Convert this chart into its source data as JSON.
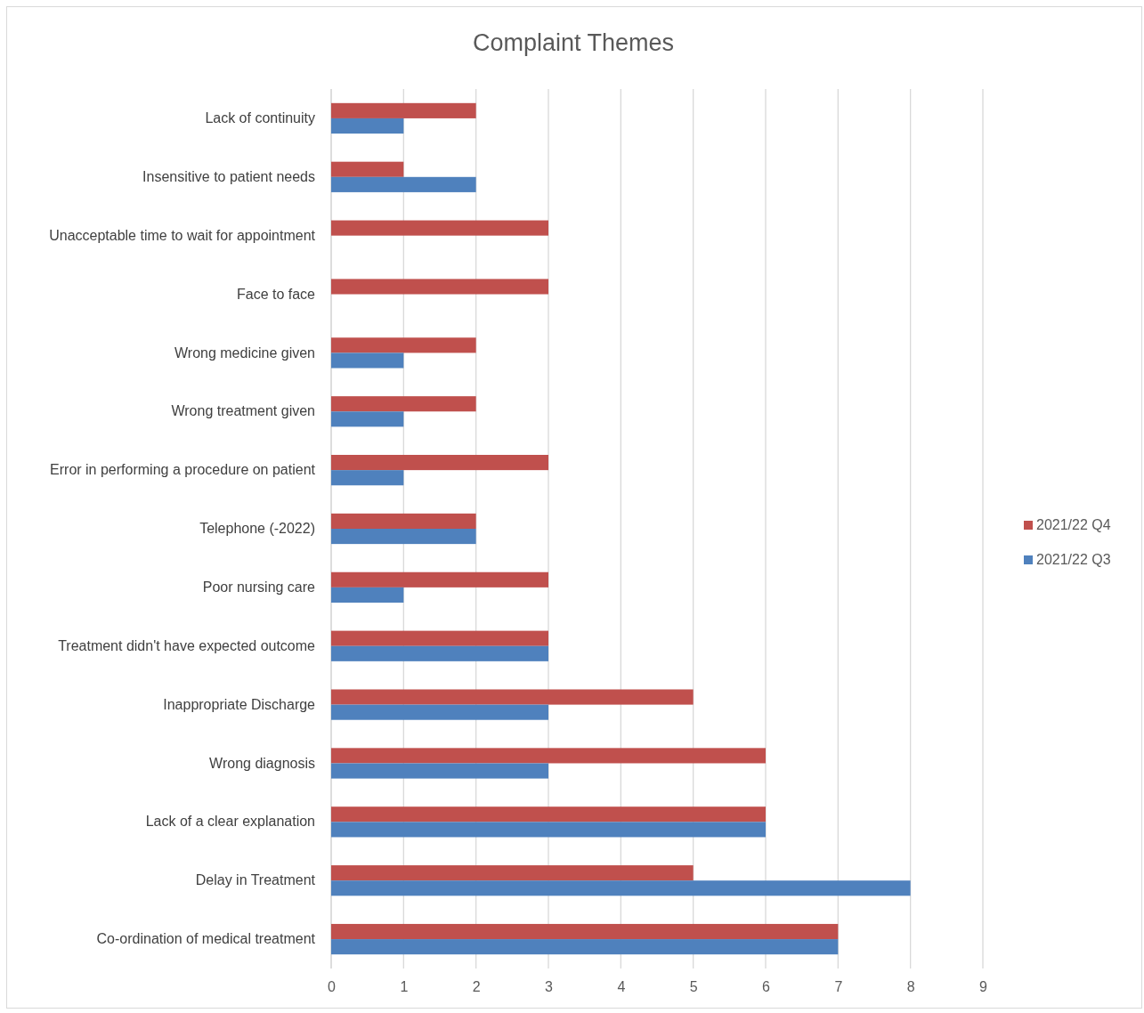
{
  "chart_data": {
    "type": "bar",
    "orientation": "horizontal",
    "title": "Complaint Themes",
    "categories": [
      "Lack of continuity",
      "Insensitive to patient needs",
      "Unacceptable time to wait for appointment",
      "Face to face",
      "Wrong medicine given",
      "Wrong treatment given",
      "Error in performing a procedure on patient",
      "Telephone (-2022)",
      "Poor nursing care",
      "Treatment didn't have expected outcome",
      "Inappropriate Discharge",
      "Wrong diagnosis",
      "Lack of a clear explanation",
      "Delay in Treatment",
      "Co-ordination of medical treatment"
    ],
    "series": [
      {
        "name": "2021/22 Q4",
        "color": "#c0504d",
        "values": [
          2,
          1,
          3,
          3,
          2,
          2,
          3,
          2,
          3,
          3,
          5,
          6,
          6,
          5,
          7
        ]
      },
      {
        "name": "2021/22 Q3",
        "color": "#4f81bd",
        "values": [
          1,
          2,
          null,
          null,
          1,
          1,
          1,
          2,
          1,
          3,
          3,
          3,
          6,
          8,
          7
        ]
      }
    ],
    "xlim": [
      0,
      9
    ],
    "xticks": [
      0,
      1,
      2,
      3,
      4,
      5,
      6,
      7,
      8,
      9
    ],
    "grid": "x",
    "legend": "right"
  }
}
